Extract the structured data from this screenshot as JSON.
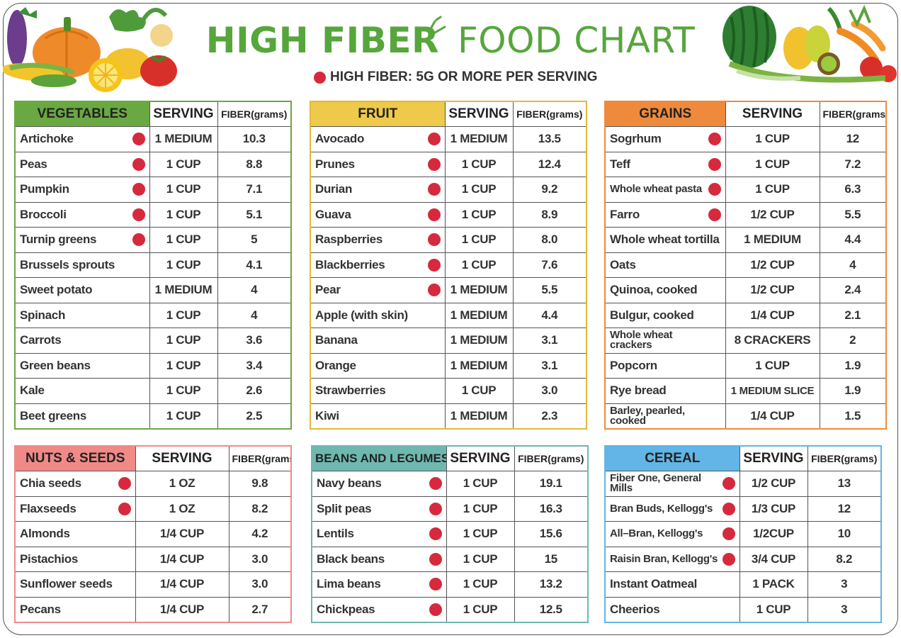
{
  "title": {
    "bold": "HIGH FIBER",
    "light": "FOOD CHART"
  },
  "legend": "HIGH FIBER: 5G OR MORE PER SERVING",
  "colors": {
    "green": "#56a63c",
    "red_dot": "#d6293d"
  },
  "tables": [
    {
      "id": "vegetables",
      "header": "VEGETABLES",
      "serving_header": "SERVING",
      "fiber_header": "FIBER(grams)",
      "color": "#6aa842",
      "border": "#6aa842",
      "rows": [
        {
          "name": "Artichoke",
          "serving": "1 MEDIUM",
          "fiber": "10.3",
          "high": true
        },
        {
          "name": "Peas",
          "serving": "1 CUP",
          "fiber": "8.8",
          "high": true
        },
        {
          "name": "Pumpkin",
          "serving": "1 CUP",
          "fiber": "7.1",
          "high": true
        },
        {
          "name": "Broccoli",
          "serving": "1 CUP",
          "fiber": "5.1",
          "high": true
        },
        {
          "name": "Turnip greens",
          "serving": "1 CUP",
          "fiber": "5",
          "high": true
        },
        {
          "name": "Brussels sprouts",
          "serving": "1 CUP",
          "fiber": "4.1",
          "high": false
        },
        {
          "name": "Sweet potato",
          "serving": "1 MEDIUM",
          "fiber": "4",
          "high": false
        },
        {
          "name": "Spinach",
          "serving": "1 CUP",
          "fiber": "4",
          "high": false
        },
        {
          "name": "Carrots",
          "serving": "1 CUP",
          "fiber": "3.6",
          "high": false
        },
        {
          "name": "Green beans",
          "serving": "1 CUP",
          "fiber": "3.4",
          "high": false
        },
        {
          "name": "Kale",
          "serving": "1 CUP",
          "fiber": "2.6",
          "high": false
        },
        {
          "name": "Beet greens",
          "serving": "1 CUP",
          "fiber": "2.5",
          "high": false
        }
      ]
    },
    {
      "id": "fruit",
      "header": "FRUIT",
      "serving_header": "SERVING",
      "fiber_header": "FIBER(grams)",
      "color": "#efc94a",
      "border": "#e2b93a",
      "rows": [
        {
          "name": "Avocado",
          "serving": "1 MEDIUM",
          "fiber": "13.5",
          "high": true
        },
        {
          "name": "Prunes",
          "serving": "1 CUP",
          "fiber": "12.4",
          "high": true
        },
        {
          "name": "Durian",
          "serving": "1 CUP",
          "fiber": "9.2",
          "high": true
        },
        {
          "name": "Guava",
          "serving": "1 CUP",
          "fiber": "8.9",
          "high": true
        },
        {
          "name": "Raspberries",
          "serving": "1 CUP",
          "fiber": "8.0",
          "high": true
        },
        {
          "name": "Blackberries",
          "serving": "1 CUP",
          "fiber": "7.6",
          "high": true
        },
        {
          "name": "Pear",
          "serving": "1 MEDIUM",
          "fiber": "5.5",
          "high": true
        },
        {
          "name": "Apple (with skin)",
          "serving": "1 MEDIUM",
          "fiber": "4.4",
          "high": false
        },
        {
          "name": "Banana",
          "serving": "1 MEDIUM",
          "fiber": "3.1",
          "high": false
        },
        {
          "name": "Orange",
          "serving": "1 MEDIUM",
          "fiber": "3.1",
          "high": false
        },
        {
          "name": "Strawberries",
          "serving": "1 CUP",
          "fiber": "3.0",
          "high": false
        },
        {
          "name": "Kiwi",
          "serving": "1 MEDIUM",
          "fiber": "2.3",
          "high": false
        }
      ]
    },
    {
      "id": "grains",
      "header": "GRAINS",
      "serving_header": "SERVING",
      "fiber_header": "FIBER(grams)",
      "color": "#ef8a3c",
      "border": "#ef8a3c",
      "rows": [
        {
          "name": "Sogrhum",
          "serving": "1 CUP",
          "fiber": "12",
          "high": true
        },
        {
          "name": "Teff",
          "serving": "1 CUP",
          "fiber": "7.2",
          "high": true
        },
        {
          "name": "Whole wheat pasta",
          "serving": "1 CUP",
          "fiber": "6.3",
          "high": true,
          "two": true
        },
        {
          "name": "Farro",
          "serving": "1/2 CUP",
          "fiber": "5.5",
          "high": true
        },
        {
          "name": "Whole wheat tortilla",
          "serving": "1 MEDIUM",
          "fiber": "4.4",
          "high": false
        },
        {
          "name": "Oats",
          "serving": "1/2 CUP",
          "fiber": "4",
          "high": false
        },
        {
          "name": "Quinoa, cooked",
          "serving": "1/2 CUP",
          "fiber": "2.4",
          "high": false
        },
        {
          "name": "Bulgur, cooked",
          "serving": "1/4 CUP",
          "fiber": "2.1",
          "high": false
        },
        {
          "name": "Whole wheat crackers",
          "serving": "8 CRACKERS",
          "fiber": "2",
          "high": false,
          "two": true
        },
        {
          "name": "Popcorn",
          "serving": "1 CUP",
          "fiber": "1.9",
          "high": false
        },
        {
          "name": "Rye bread",
          "serving": "1 MEDIUM SLICE",
          "fiber": "1.9",
          "high": false
        },
        {
          "name": "Barley, pearled, cooked",
          "serving": "1/4 CUP",
          "fiber": "1.5",
          "high": false,
          "two": true
        }
      ]
    },
    {
      "id": "nuts",
      "header": "NUTS & SEEDS",
      "serving_header": "SERVING",
      "fiber_header": "FIBER(grams)",
      "color": "#f08a87",
      "border": "#f08a87",
      "rows": [
        {
          "name": "Chia seeds",
          "serving": "1 OZ",
          "fiber": "9.8",
          "high": true
        },
        {
          "name": "Flaxseeds",
          "serving": "1 OZ",
          "fiber": "8.2",
          "high": true
        },
        {
          "name": "Almonds",
          "serving": "1/4 CUP",
          "fiber": "4.2",
          "high": false
        },
        {
          "name": "Pistachios",
          "serving": "1/4 CUP",
          "fiber": "3.0",
          "high": false
        },
        {
          "name": "Sunflower seeds",
          "serving": "1/4 CUP",
          "fiber": "3.0",
          "high": false
        },
        {
          "name": "Pecans",
          "serving": "1/4 CUP",
          "fiber": "2.7",
          "high": false
        }
      ]
    },
    {
      "id": "beans",
      "header": "BEANS AND LEGUMES",
      "serving_header": "SERVING",
      "fiber_header": "FIBER(grams)",
      "color": "#6fb8b0",
      "border": "#6fb8b0",
      "rows": [
        {
          "name": "Navy beans",
          "serving": "1 CUP",
          "fiber": "19.1",
          "high": true
        },
        {
          "name": "Split peas",
          "serving": "1 CUP",
          "fiber": "16.3",
          "high": true
        },
        {
          "name": "Lentils",
          "serving": "1 CUP",
          "fiber": "15.6",
          "high": true
        },
        {
          "name": "Black beans",
          "serving": "1 CUP",
          "fiber": "15",
          "high": true
        },
        {
          "name": "Lima beans",
          "serving": "1 CUP",
          "fiber": "13.2",
          "high": true
        },
        {
          "name": "Chickpeas",
          "serving": "1 CUP",
          "fiber": "12.5",
          "high": true
        }
      ]
    },
    {
      "id": "cereal",
      "header": "CEREAL",
      "serving_header": "SERVING",
      "fiber_header": "FIBER(grams)",
      "color": "#62b5e6",
      "border": "#62b5e6",
      "rows": [
        {
          "name": "Fiber One, General Mills",
          "serving": "1/2 CUP",
          "fiber": "13",
          "high": true,
          "two": true
        },
        {
          "name": "Bran Buds, Kellogg's",
          "serving": "1/3 CUP",
          "fiber": "12",
          "high": true,
          "two": true
        },
        {
          "name": "All–Bran, Kellogg's",
          "serving": "1/2CUP",
          "fiber": "10",
          "high": true,
          "two": true
        },
        {
          "name": "Raisin Bran, Kellogg's",
          "serving": "3/4 CUP",
          "fiber": "8.2",
          "high": true,
          "two": true
        },
        {
          "name": "Instant Oatmeal",
          "serving": "1 PACK",
          "fiber": "3",
          "high": false
        },
        {
          "name": "Cheerios",
          "serving": "1 CUP",
          "fiber": "3",
          "high": false
        }
      ]
    }
  ]
}
